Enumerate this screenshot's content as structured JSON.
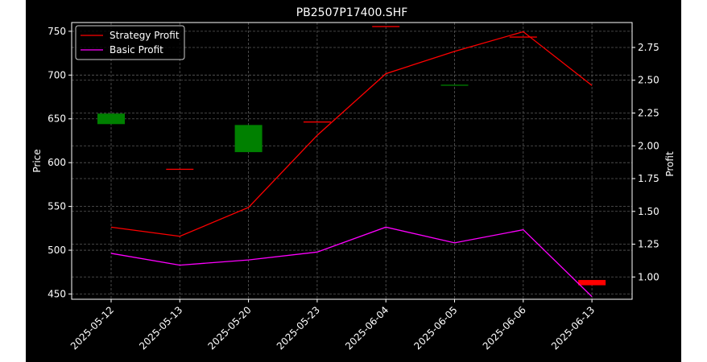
{
  "chart_data": {
    "type": "candlestick+line",
    "title": "PB2507P17400.SHF",
    "xlabel": "",
    "ylabel": "Price",
    "y2label": "Profit",
    "ylim": [
      444,
      760
    ],
    "y2lim": [
      0.83,
      2.94
    ],
    "yticks": [
      450,
      500,
      550,
      600,
      650,
      700,
      750
    ],
    "y2ticks": [
      "1.00",
      "1.25",
      "1.50",
      "1.75",
      "2.00",
      "2.25",
      "2.50",
      "2.75"
    ],
    "categories": [
      "2025-05-12",
      "2025-05-13",
      "2025-05-20",
      "2025-05-23",
      "2025-06-04",
      "2025-06-05",
      "2025-06-06",
      "2025-06-13"
    ],
    "candles": [
      {
        "open": 644,
        "close": 656,
        "color": "green"
      },
      {
        "open": 593,
        "close": 593,
        "color": "red"
      },
      {
        "open": 612,
        "close": 643,
        "color": "green"
      },
      {
        "open": 647,
        "close": 647,
        "color": "red"
      },
      {
        "open": 756,
        "close": 756,
        "color": "red"
      },
      {
        "open": 689,
        "close": 689,
        "color": "green"
      },
      {
        "open": 744,
        "close": 744,
        "color": "red"
      },
      {
        "open": 460,
        "close": 466,
        "color": "red"
      }
    ],
    "series": [
      {
        "name": "Strategy Profit",
        "axis": "right",
        "color": "#ff0000",
        "values": [
          1.38,
          1.31,
          1.53,
          2.08,
          2.55,
          2.72,
          2.87,
          2.46
        ]
      },
      {
        "name": "Basic Profit",
        "axis": "right",
        "color": "#ff00ff",
        "values": [
          1.18,
          1.09,
          1.13,
          1.19,
          1.38,
          1.26,
          1.36,
          0.85
        ]
      }
    ],
    "grid": true,
    "legend_position": "top-left",
    "colors": {
      "background": "#000000",
      "up": "#008000",
      "down": "#ff0000",
      "text": "#ffffff",
      "grid": "#555555"
    }
  }
}
